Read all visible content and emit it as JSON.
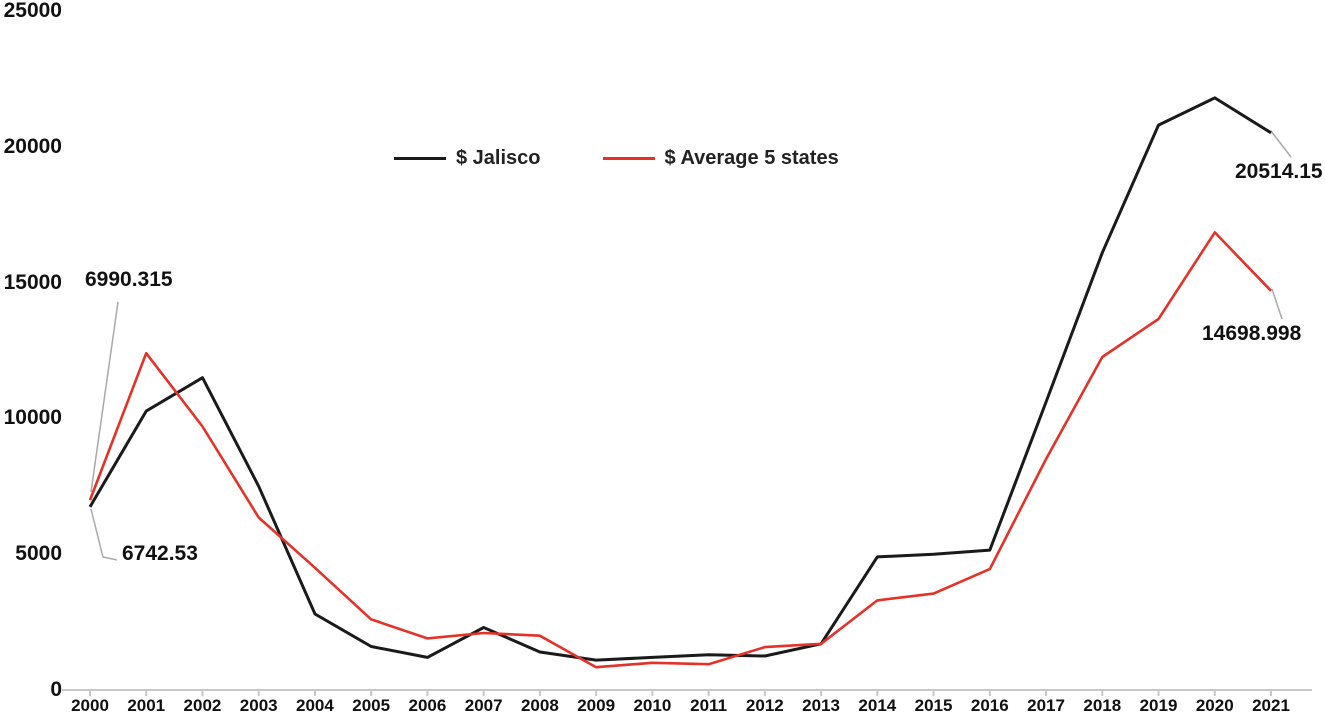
{
  "chart_data": {
    "type": "line",
    "title": "",
    "xlabel": "",
    "ylabel": "",
    "x": [
      2000,
      2001,
      2002,
      2003,
      2004,
      2005,
      2006,
      2007,
      2008,
      2009,
      2010,
      2011,
      2012,
      2013,
      2014,
      2015,
      2016,
      2017,
      2018,
      2019,
      2020,
      2021
    ],
    "series": [
      {
        "name": "$ Jalisco",
        "color": "#1a1a1a",
        "values": [
          6742.53,
          10270,
          11500,
          7500,
          2800,
          1600,
          1200,
          2300,
          1400,
          1100,
          1200,
          1300,
          1250,
          1700,
          4900,
          5000,
          5150,
          10600,
          16100,
          20800,
          21800,
          20514.15
        ]
      },
      {
        "name": "$ Average 5 states",
        "color": "#e53228",
        "values": [
          6990.315,
          12400,
          9700,
          6350,
          4500,
          2600,
          1900,
          2100,
          2000,
          840,
          1000,
          950,
          1580,
          1700,
          3300,
          3550,
          4450,
          8500,
          12260,
          13660,
          16850,
          14698.998
        ]
      }
    ],
    "ylim": [
      0,
      25000
    ],
    "yticks": [
      0,
      5000,
      10000,
      15000,
      20000,
      25000
    ],
    "grid": false,
    "legend_position": "top-center",
    "annotations": [
      {
        "text": "6990.315",
        "series": "$ Average 5 states",
        "year": 2000,
        "value": 6990.315
      },
      {
        "text": "6742.53",
        "series": "$ Jalisco",
        "year": 2000,
        "value": 6742.53
      },
      {
        "text": "20514.15",
        "series": "$ Jalisco",
        "year": 2021,
        "value": 20514.15
      },
      {
        "text": "14698.998",
        "series": "$ Average 5 states",
        "year": 2021,
        "value": 14698.998
      }
    ]
  },
  "colors": {
    "jalisco_line": "#1a1a1a",
    "average_line": "#e53228",
    "axis": "#c8c8c8",
    "leader": "#a9a9a9",
    "text": "#111111"
  }
}
